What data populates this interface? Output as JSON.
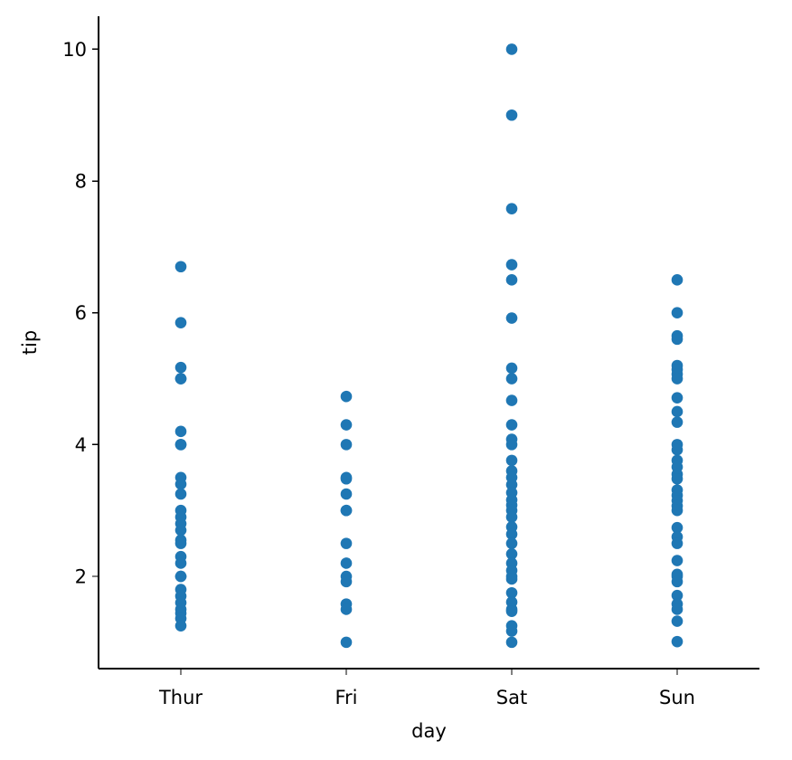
{
  "chart_data": {
    "type": "scatter",
    "title": "",
    "xlabel": "day",
    "ylabel": "tip",
    "categories": [
      "Thur",
      "Fri",
      "Sat",
      "Sun"
    ],
    "ylim": [
      0.6,
      10.5
    ],
    "yticks": [
      2,
      4,
      6,
      8,
      10
    ],
    "grid": false,
    "legend": "none",
    "colors": {
      "points": "#1f77b4",
      "axes": "#000000",
      "background": "#ffffff"
    },
    "series": [
      {
        "category": "Thur",
        "values": [
          6.7,
          5.85,
          5.17,
          5.0,
          5.0,
          4.2,
          4.0,
          4.0,
          3.5,
          3.4,
          3.25,
          3.0,
          2.9,
          2.8,
          2.7,
          2.55,
          2.5,
          2.3,
          2.2,
          2.0,
          2.0,
          1.8,
          1.7,
          1.6,
          1.5,
          1.44,
          1.36,
          1.25
        ]
      },
      {
        "category": "Fri",
        "values": [
          4.73,
          4.3,
          4.0,
          3.5,
          3.48,
          3.25,
          3.0,
          3.0,
          2.5,
          2.2,
          2.0,
          1.92,
          1.58,
          1.5,
          1.0
        ]
      },
      {
        "category": "Sat",
        "values": [
          10.0,
          9.0,
          7.58,
          6.73,
          6.5,
          5.92,
          5.16,
          5.0,
          4.67,
          4.3,
          4.08,
          4.0,
          3.76,
          3.6,
          3.5,
          3.39,
          3.27,
          3.16,
          3.08,
          3.0,
          2.9,
          2.75,
          2.64,
          2.5,
          2.34,
          2.2,
          2.09,
          2.0,
          1.96,
          1.75,
          1.61,
          1.5,
          1.47,
          1.25,
          1.17,
          1.0
        ]
      },
      {
        "category": "Sun",
        "values": [
          6.5,
          6.0,
          5.65,
          5.6,
          5.2,
          5.14,
          5.07,
          5.0,
          4.71,
          4.5,
          4.34,
          4.0,
          3.92,
          3.76,
          3.66,
          3.55,
          3.48,
          3.31,
          3.23,
          3.15,
          3.07,
          3.0,
          2.74,
          2.6,
          2.5,
          2.24,
          2.03,
          2.0,
          1.92,
          1.71,
          1.58,
          1.5,
          1.32,
          1.01
        ]
      }
    ]
  }
}
